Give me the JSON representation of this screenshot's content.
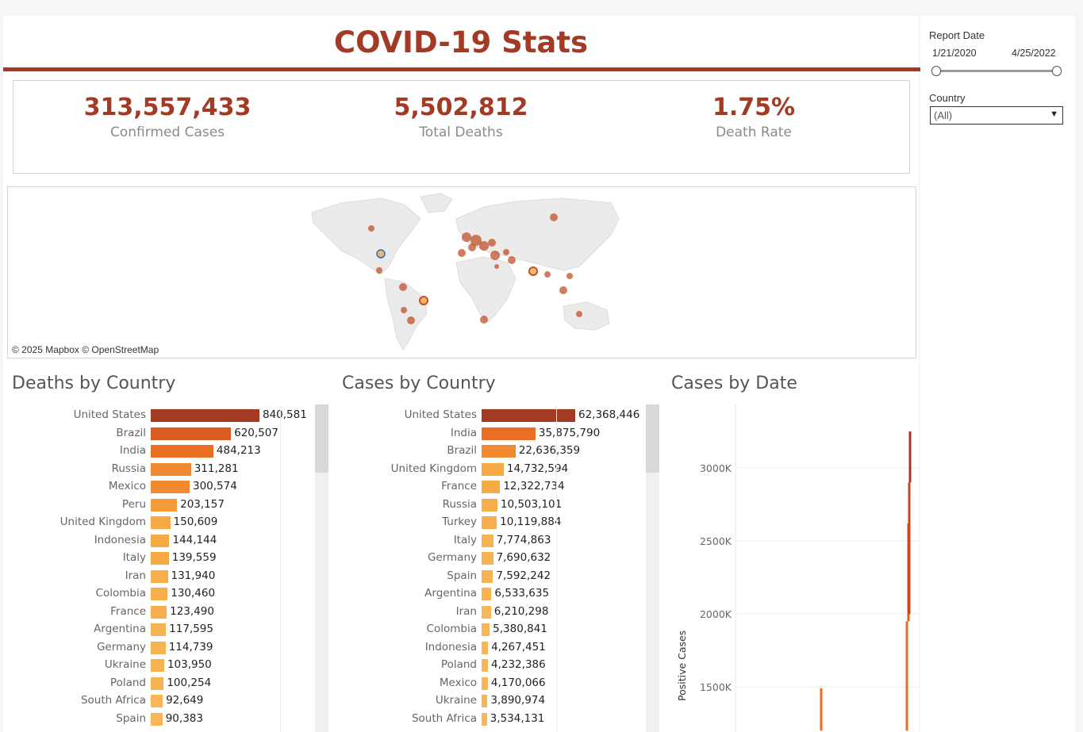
{
  "header": {
    "title": "COVID-19 Stats"
  },
  "kpis": [
    {
      "value": "313,557,433",
      "label": "Confirmed Cases"
    },
    {
      "value": "5,502,812",
      "label": "Total Deaths"
    },
    {
      "value": "1.75%",
      "label": "Death Rate"
    }
  ],
  "map": {
    "attribution": "© 2025 Mapbox  © OpenStreetMap"
  },
  "deaths": {
    "title": "Deaths by Country",
    "max": 840581,
    "rows": [
      {
        "country": "United States",
        "value": 840581,
        "label": "840,581",
        "color": "#a33b24"
      },
      {
        "country": "Brazil",
        "value": 620507,
        "label": "620,507",
        "color": "#dd5b22"
      },
      {
        "country": "India",
        "value": 484213,
        "label": "484,213",
        "color": "#ea6d24"
      },
      {
        "country": "Russia",
        "value": 311281,
        "label": "311,281",
        "color": "#f08a30"
      },
      {
        "country": "Mexico",
        "value": 300574,
        "label": "300,574",
        "color": "#f08a30"
      },
      {
        "country": "Peru",
        "value": 203157,
        "label": "203,157",
        "color": "#f59b3c"
      },
      {
        "country": "United Kingdom",
        "value": 150609,
        "label": "150,609",
        "color": "#f7a946"
      },
      {
        "country": "Indonesia",
        "value": 144144,
        "label": "144,144",
        "color": "#f7a946"
      },
      {
        "country": "Italy",
        "value": 139559,
        "label": "139,559",
        "color": "#f7a946"
      },
      {
        "country": "Iran",
        "value": 131940,
        "label": "131,940",
        "color": "#f7ae4c"
      },
      {
        "country": "Colombia",
        "value": 130460,
        "label": "130,460",
        "color": "#f7ae4c"
      },
      {
        "country": "France",
        "value": 123490,
        "label": "123,490",
        "color": "#f7ae4c"
      },
      {
        "country": "Argentina",
        "value": 117595,
        "label": "117,595",
        "color": "#f7b352"
      },
      {
        "country": "Germany",
        "value": 114739,
        "label": "114,739",
        "color": "#f7b352"
      },
      {
        "country": "Ukraine",
        "value": 103950,
        "label": "103,950",
        "color": "#f7b352"
      },
      {
        "country": "Poland",
        "value": 100254,
        "label": "100,254",
        "color": "#f7b352"
      },
      {
        "country": "South Africa",
        "value": 92649,
        "label": "92,649",
        "color": "#f7b757"
      },
      {
        "country": "Spain",
        "value": 90383,
        "label": "90,383",
        "color": "#f7b757"
      }
    ]
  },
  "cases": {
    "title": "Cases by Country",
    "max": 62368446,
    "rows": [
      {
        "country": "United States",
        "value": 62368446,
        "label": "62,368,446",
        "color": "#a33b24"
      },
      {
        "country": "India",
        "value": 35875790,
        "label": "35,875,790",
        "color": "#ea6d24"
      },
      {
        "country": "Brazil",
        "value": 22636359,
        "label": "22,636,359",
        "color": "#f08a30"
      },
      {
        "country": "United Kingdom",
        "value": 14732594,
        "label": "14,732,594",
        "color": "#f7a946"
      },
      {
        "country": "France",
        "value": 12322734,
        "label": "12,322,734",
        "color": "#f7a946"
      },
      {
        "country": "Russia",
        "value": 10503101,
        "label": "10,503,101",
        "color": "#f7ae4c"
      },
      {
        "country": "Turkey",
        "value": 10119884,
        "label": "10,119,884",
        "color": "#f7ae4c"
      },
      {
        "country": "Italy",
        "value": 7774863,
        "label": "7,774,863",
        "color": "#f7b352"
      },
      {
        "country": "Germany",
        "value": 7690632,
        "label": "7,690,632",
        "color": "#f7b352"
      },
      {
        "country": "Spain",
        "value": 7592242,
        "label": "7,592,242",
        "color": "#f7b352"
      },
      {
        "country": "Argentina",
        "value": 6533635,
        "label": "6,533,635",
        "color": "#f7b352"
      },
      {
        "country": "Iran",
        "value": 6210298,
        "label": "6,210,298",
        "color": "#f7b757"
      },
      {
        "country": "Colombia",
        "value": 5380841,
        "label": "5,380,841",
        "color": "#f7b757"
      },
      {
        "country": "Indonesia",
        "value": 4267451,
        "label": "4,267,451",
        "color": "#f7b757"
      },
      {
        "country": "Poland",
        "value": 4232386,
        "label": "4,232,386",
        "color": "#f7b757"
      },
      {
        "country": "Mexico",
        "value": 4170066,
        "label": "4,170,066",
        "color": "#f7b757"
      },
      {
        "country": "Ukraine",
        "value": 3890974,
        "label": "3,890,974",
        "color": "#f7b757"
      },
      {
        "country": "South Africa",
        "value": 3534131,
        "label": "3,534,131",
        "color": "#f7b757"
      }
    ]
  },
  "by_date": {
    "title": "Cases by Date",
    "ylabel": "Positive Cases",
    "ticks": [
      "3000K",
      "2500K",
      "2000K",
      "1500K"
    ]
  },
  "filters": {
    "report_date_label": "Report Date",
    "date_start": "1/21/2020",
    "date_end": "4/25/2022",
    "country_label": "Country",
    "country_value": "(All)"
  },
  "chart_data": [
    {
      "type": "bar",
      "title": "Deaths by Country",
      "categories": [
        "United States",
        "Brazil",
        "India",
        "Russia",
        "Mexico",
        "Peru",
        "United Kingdom",
        "Indonesia",
        "Italy",
        "Iran",
        "Colombia",
        "France",
        "Argentina",
        "Germany",
        "Ukraine",
        "Poland",
        "South Africa",
        "Spain"
      ],
      "values": [
        840581,
        620507,
        484213,
        311281,
        300574,
        203157,
        150609,
        144144,
        139559,
        131940,
        130460,
        123490,
        117595,
        114739,
        103950,
        100254,
        92649,
        90383
      ]
    },
    {
      "type": "bar",
      "title": "Cases by Country",
      "categories": [
        "United States",
        "India",
        "Brazil",
        "United Kingdom",
        "France",
        "Russia",
        "Turkey",
        "Italy",
        "Germany",
        "Spain",
        "Argentina",
        "Iran",
        "Colombia",
        "Indonesia",
        "Poland",
        "Mexico",
        "Ukraine",
        "South Africa"
      ],
      "values": [
        62368446,
        35875790,
        22636359,
        14732594,
        12322734,
        10503101,
        10119884,
        7774863,
        7690632,
        7592242,
        6533635,
        6210298,
        5380841,
        4267451,
        4232386,
        4170066,
        3890974,
        3534131
      ]
    },
    {
      "type": "line",
      "title": "Cases by Date",
      "ylabel": "Positive Cases",
      "yticks": [
        "3000K",
        "2500K",
        "2000K",
        "1500K"
      ],
      "visible_spikes_k": [
        1490,
        3250
      ]
    }
  ]
}
